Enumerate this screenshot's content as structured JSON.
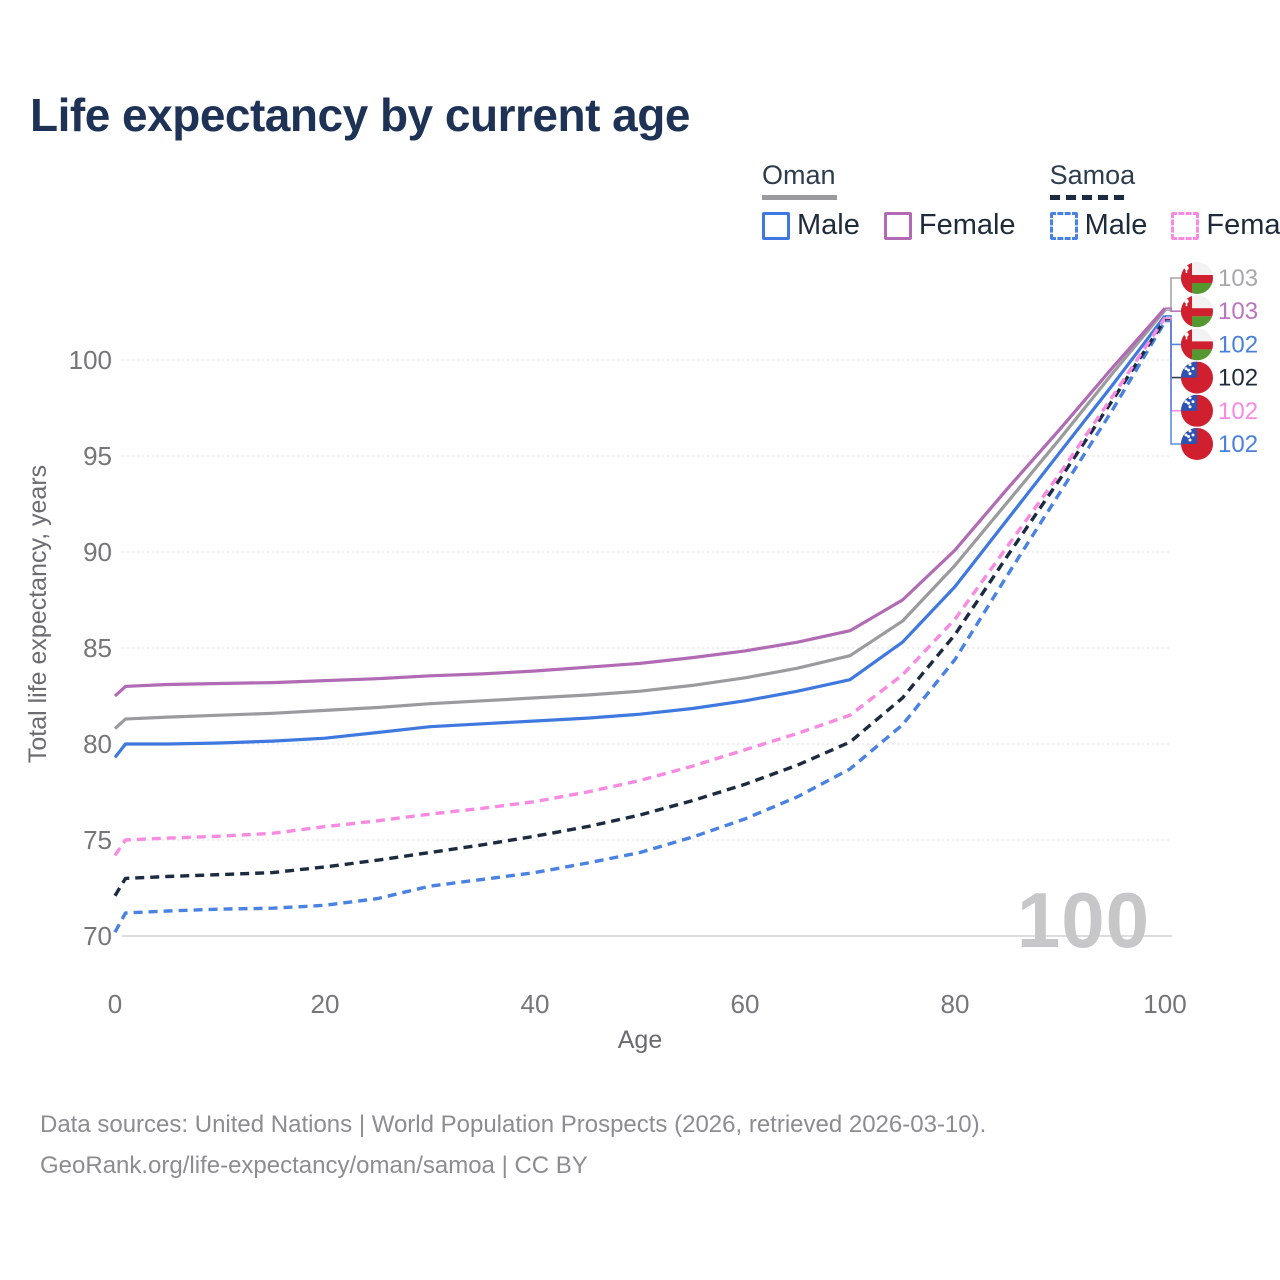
{
  "title": "Life expectancy by current age",
  "legend": {
    "groups": [
      {
        "name": "Oman",
        "style": "solid",
        "swatch_color": "#9b9b9e",
        "items": [
          {
            "label": "Male",
            "color": "#3f79df"
          },
          {
            "label": "Female",
            "color": "#b16ab4"
          }
        ]
      },
      {
        "name": "Samoa",
        "style": "dashed",
        "swatch_color": "#1c2b40",
        "items": [
          {
            "label": "Male",
            "color": "#4a82e2"
          },
          {
            "label": "Female",
            "color": "#f98ae2"
          }
        ]
      }
    ]
  },
  "axes": {
    "y_label": "Total life expectancy, years",
    "x_label": "Age",
    "y_ticks": [
      "100",
      "95",
      "90",
      "85",
      "80",
      "75",
      "70"
    ],
    "x_ticks": [
      "0",
      "20",
      "40",
      "60",
      "80",
      "100"
    ]
  },
  "watermark": "100",
  "end_labels": [
    {
      "value": "103",
      "flag": "oman",
      "series_index": 1,
      "color": "#a8a8ab",
      "leader_color": "#9b9b9e"
    },
    {
      "value": "103",
      "flag": "oman",
      "series_index": 2,
      "color": "#bb74bf",
      "leader_color": "#b16ab4"
    },
    {
      "value": "102",
      "flag": "oman",
      "series_index": 0,
      "color": "#4a80dd",
      "leader_color": "#3f79df"
    },
    {
      "value": "102",
      "flag": "samoa",
      "series_index": 4,
      "color": "#1f2a3d",
      "leader_color": "#1c2b40"
    },
    {
      "value": "102",
      "flag": "samoa",
      "series_index": 5,
      "color": "#f98ae2",
      "leader_color": "#f98ae2"
    },
    {
      "value": "102",
      "flag": "samoa",
      "series_index": 3,
      "color": "#4a80dd",
      "leader_color": "#4a82e2"
    }
  ],
  "footer": {
    "line1": "Data sources: United Nations | World Population Prospects (2026, retrieved 2026-03-10).",
    "line2": "GeoRank.org/life-expectancy/oman/samoa | CC BY"
  },
  "chart_data": {
    "type": "line",
    "title": "Life expectancy by current age",
    "xlabel": "Age",
    "ylabel": "Total life expectancy, years",
    "xlim": [
      0,
      100
    ],
    "ylim": [
      68,
      104
    ],
    "x_ticks": [
      0,
      20,
      40,
      60,
      80,
      100
    ],
    "y_ticks": [
      100,
      95,
      90,
      85,
      80,
      75,
      70
    ],
    "grid": "horizontal-dotted",
    "legend_position": "top-right",
    "ages": [
      0,
      1,
      5,
      10,
      15,
      20,
      25,
      30,
      35,
      40,
      45,
      50,
      55,
      60,
      65,
      70,
      75,
      80,
      85,
      90,
      95,
      100
    ],
    "series": [
      {
        "name": "Oman Male",
        "country": "Oman",
        "sex": "male",
        "style": "solid",
        "color": "#3f79df",
        "end_label": "102",
        "values": [
          79.3,
          80.0,
          80.0,
          80.05,
          80.15,
          80.3,
          80.6,
          80.9,
          81.05,
          81.2,
          81.35,
          81.55,
          81.85,
          82.25,
          82.75,
          83.35,
          85.3,
          88.2,
          91.7,
          95.2,
          98.7,
          102.3
        ]
      },
      {
        "name": "Oman Both sexes",
        "country": "Oman",
        "sex": "both",
        "style": "solid",
        "color": "#9b9b9e",
        "end_label": "103",
        "values": [
          80.8,
          81.3,
          81.4,
          81.5,
          81.6,
          81.75,
          81.9,
          82.1,
          82.25,
          82.4,
          82.55,
          82.75,
          83.05,
          83.45,
          83.95,
          84.6,
          86.4,
          89.3,
          92.6,
          95.9,
          99.3,
          102.6
        ]
      },
      {
        "name": "Oman Female",
        "country": "Oman",
        "sex": "female",
        "style": "solid",
        "color": "#b16ab4",
        "end_label": "103",
        "values": [
          82.5,
          83.0,
          83.1,
          83.15,
          83.2,
          83.3,
          83.4,
          83.55,
          83.65,
          83.8,
          84.0,
          84.2,
          84.5,
          84.85,
          85.3,
          85.9,
          87.5,
          90.1,
          93.3,
          96.4,
          99.6,
          102.7
        ]
      },
      {
        "name": "Samoa Male",
        "country": "Samoa",
        "sex": "male",
        "style": "dashed",
        "color": "#4a82e2",
        "end_label": "102",
        "values": [
          70.2,
          71.2,
          71.3,
          71.4,
          71.45,
          71.6,
          71.95,
          72.6,
          72.95,
          73.3,
          73.8,
          74.35,
          75.15,
          76.1,
          77.25,
          78.7,
          81.0,
          84.4,
          88.8,
          93.1,
          97.4,
          102.0
        ]
      },
      {
        "name": "Samoa Both sexes",
        "country": "Samoa",
        "sex": "both",
        "style": "dashed",
        "color": "#1c2b40",
        "end_label": "102",
        "values": [
          72.1,
          73.0,
          73.1,
          73.2,
          73.3,
          73.6,
          73.95,
          74.35,
          74.75,
          75.2,
          75.7,
          76.3,
          77.05,
          77.9,
          78.9,
          80.1,
          82.4,
          85.7,
          89.8,
          93.8,
          97.9,
          102.1
        ]
      },
      {
        "name": "Samoa Female",
        "country": "Samoa",
        "sex": "female",
        "style": "dashed",
        "color": "#f98ae2",
        "end_label": "102",
        "values": [
          74.2,
          75.0,
          75.1,
          75.2,
          75.35,
          75.7,
          76.0,
          76.35,
          76.65,
          77.0,
          77.5,
          78.1,
          78.85,
          79.7,
          80.55,
          81.5,
          83.6,
          86.5,
          90.3,
          94.1,
          98.1,
          102.2
        ]
      }
    ]
  }
}
